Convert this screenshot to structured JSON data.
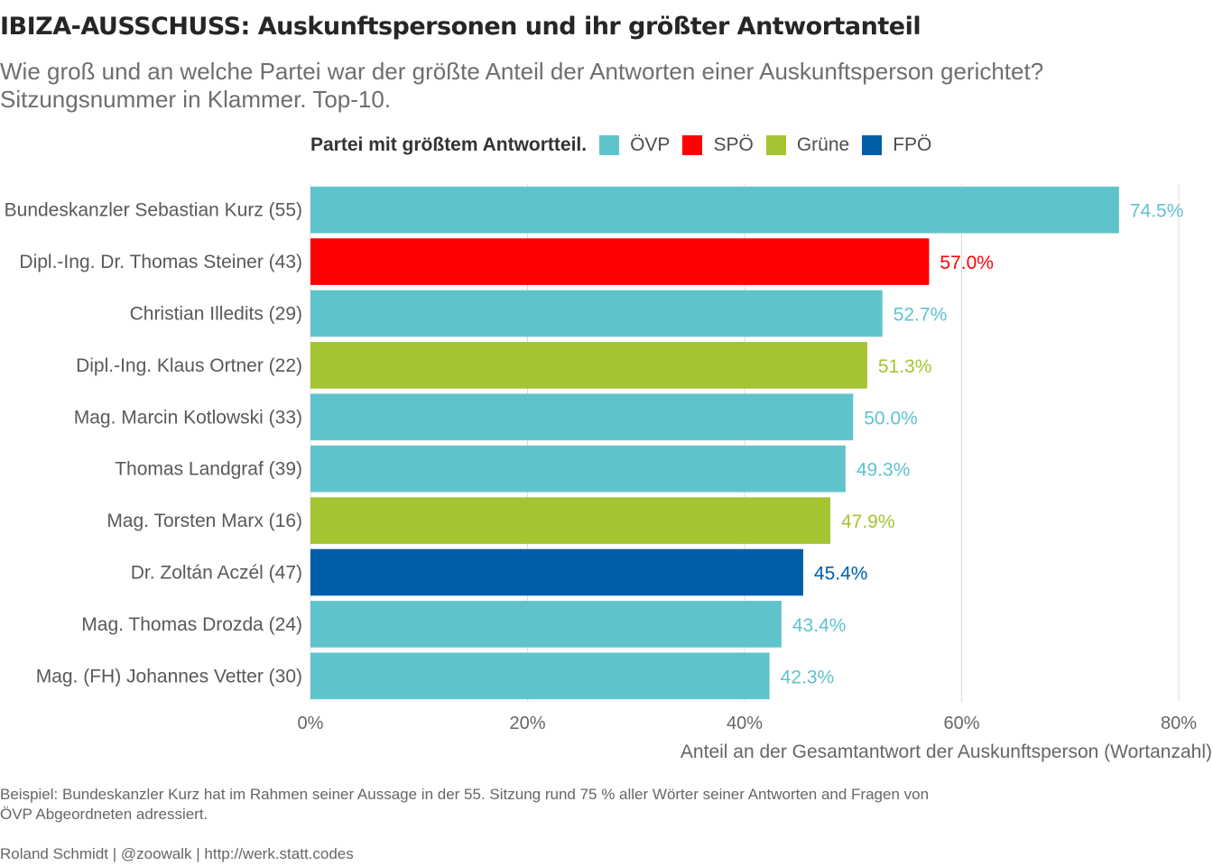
{
  "title": "IBIZA-AUSSCHUSS: Auskunftspersonen und ihr größter Antwortanteil",
  "subtitle_lines": [
    "Wie groß und an welche Partei war der größte Anteil der Antworten einer Auskunftsperson gerichtet?",
    "Sitzungsnummer in Klammer. Top-10."
  ],
  "legend": {
    "title": "Partei mit größtem Antwortteil.",
    "items": [
      {
        "label": "ÖVP",
        "color": "#5fc3cc"
      },
      {
        "label": "SPÖ",
        "color": "#ff0000"
      },
      {
        "label": "Grüne",
        "color": "#a4c432"
      },
      {
        "label": "FPÖ",
        "color": "#005eab"
      }
    ]
  },
  "chart_data": {
    "type": "bar",
    "orientation": "horizontal",
    "xlabel": "Anteil an der Gesamtantwort der Auskunftsperson (Wortanzahl)",
    "ylabel": "",
    "xlim": [
      0,
      80
    ],
    "x_ticks": [
      "0%",
      "20%",
      "40%",
      "60%",
      "80%"
    ],
    "x_tick_values": [
      0,
      20,
      40,
      60,
      80
    ],
    "grid": "vertical",
    "categories": [
      "Bundeskanzler Sebastian Kurz (55)",
      "Dipl.-Ing. Dr. Thomas Steiner (43)",
      "Christian Illedits (29)",
      "Dipl.-Ing. Klaus Ortner (22)",
      "Mag. Marcin Kotlowski (33)",
      "Thomas Landgraf (39)",
      "Mag. Torsten Marx (16)",
      "Dr. Zoltán Aczél (47)",
      "Mag. Thomas Drozda (24)",
      "Mag. (FH) Johannes Vetter (30)"
    ],
    "values": [
      74.5,
      57.0,
      52.7,
      51.3,
      50.0,
      49.3,
      47.9,
      45.4,
      43.4,
      42.3
    ],
    "value_labels": [
      "74.5%",
      "57.0%",
      "52.7%",
      "51.3%",
      "50.0%",
      "49.3%",
      "47.9%",
      "45.4%",
      "43.4%",
      "42.3%"
    ],
    "party": [
      "ÖVP",
      "SPÖ",
      "ÖVP",
      "Grüne",
      "ÖVP",
      "ÖVP",
      "Grüne",
      "FPÖ",
      "ÖVP",
      "ÖVP"
    ]
  },
  "caption_lines": [
    "Beispiel: Bundeskanzler Kurz hat im Rahmen seiner Aussage in der 55. Sitzung rund 75 % aller Wörter seiner Antworten and Fragen von",
    "ÖVP Abgeordneten adressiert."
  ],
  "credits": "Roland Schmidt | @zoowalk | http://werk.statt.codes"
}
